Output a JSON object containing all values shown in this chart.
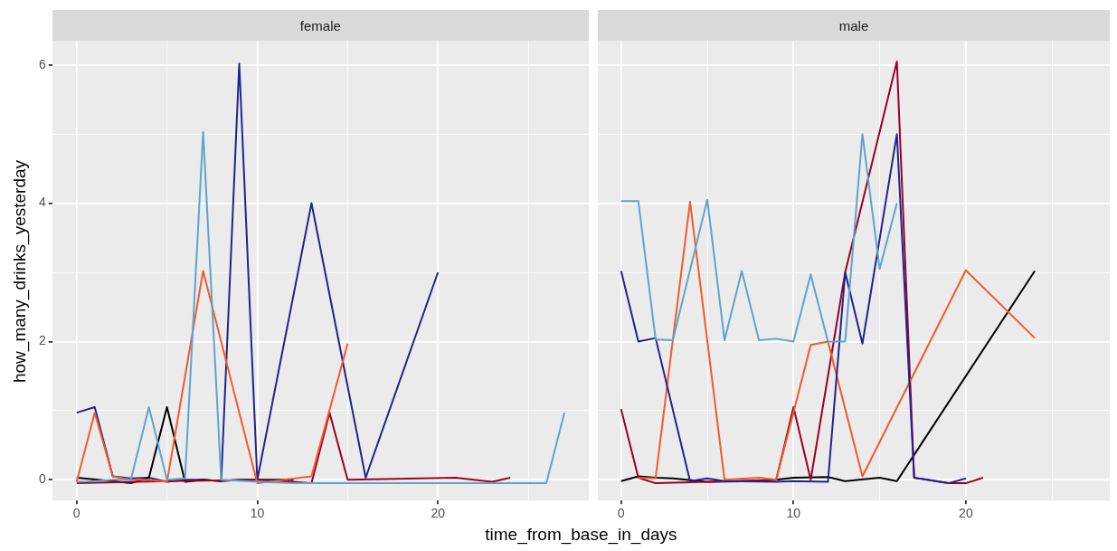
{
  "chart_data": [
    {
      "type": "line",
      "title": "female",
      "ylabel": "how_many_drinks_yesterday",
      "xlabel": "time_from_base_in_days",
      "xlim": [
        -1.35,
        28.35
      ],
      "xticks": [
        0,
        {
          "value": 5,
          "label": null
        },
        10,
        {
          "value": 15,
          "label": null
        },
        20,
        {
          "value": 25,
          "label": null
        }
      ],
      "ylim": [
        -0.3,
        6.35
      ],
      "yticks": [
        0,
        {
          "value": 1,
          "label": null
        },
        2,
        {
          "value": 3,
          "label": null
        },
        4,
        {
          "value": 5,
          "label": null
        },
        6
      ],
      "grid": true,
      "legend": false,
      "series": [
        {
          "color": "#5fa3cd",
          "x": [
            0,
            1,
            2,
            3,
            4,
            5,
            6,
            7,
            8,
            10,
            12,
            15,
            20,
            26,
            27
          ],
          "values": [
            -0.03,
            -0.02,
            0.0,
            0.0,
            1.05,
            0.0,
            0.02,
            5.03,
            0.0,
            -0.03,
            -0.05,
            -0.05,
            -0.05,
            -0.05,
            0.97
          ]
        },
        {
          "color": "#f15a2e",
          "x": [
            0,
            1,
            2,
            3,
            4,
            5,
            7,
            10,
            13,
            15
          ],
          "values": [
            -0.03,
            0.97,
            0.05,
            0.0,
            0.0,
            -0.03,
            3.02,
            -0.05,
            0.05,
            1.97
          ]
        },
        {
          "color": "#9a0024",
          "x": [
            0,
            5,
            10,
            12,
            13,
            14,
            15,
            21,
            23,
            24
          ],
          "values": [
            -0.05,
            -0.02,
            0.0,
            -0.03,
            -0.05,
            0.97,
            0.0,
            0.03,
            -0.03,
            0.03
          ]
        },
        {
          "color": "#000000",
          "x": [
            0,
            2,
            3,
            4,
            5,
            6,
            7,
            8,
            9,
            10,
            12
          ],
          "values": [
            0.03,
            -0.02,
            -0.05,
            0.03,
            1.05,
            -0.03,
            0.0,
            -0.02,
            0.0,
            0.0,
            0.0
          ]
        },
        {
          "color": "#23238a",
          "x": [
            0,
            1,
            2,
            3,
            4,
            5,
            6,
            7,
            8,
            9,
            10,
            13,
            16,
            20
          ],
          "values": [
            0.97,
            1.05,
            0.05,
            0.02,
            0.03,
            -0.03,
            0.0,
            0.0,
            -0.02,
            6.02,
            0.0,
            4.0,
            0.03,
            3.0
          ]
        }
      ]
    },
    {
      "type": "line",
      "title": "male",
      "xlim": [
        -1.35,
        28.35
      ],
      "xticks": [
        0,
        {
          "value": 5,
          "label": null
        },
        10,
        {
          "value": 15,
          "label": null
        },
        20,
        {
          "value": 25,
          "label": null
        }
      ],
      "ylim": [
        -0.3,
        6.35
      ],
      "yticks": [
        0,
        {
          "value": 1,
          "label": null
        },
        2,
        {
          "value": 3,
          "label": null
        },
        4,
        {
          "value": 5,
          "label": null
        },
        6
      ],
      "grid": true,
      "legend": false,
      "tick_labels": "x",
      "series": [
        {
          "color": "#5fa3cd",
          "x": [
            0,
            1,
            2,
            3,
            5,
            6,
            7,
            8,
            9,
            10,
            11,
            12,
            13,
            14,
            15,
            16
          ],
          "values": [
            4.03,
            4.03,
            2.03,
            2.02,
            4.05,
            2.02,
            3.02,
            2.02,
            2.04,
            2.0,
            2.97,
            2.0,
            2.0,
            5.0,
            3.05,
            4.0
          ]
        },
        {
          "color": "#23238a",
          "x": [
            0,
            1,
            2,
            4,
            5,
            6,
            9,
            10,
            12,
            13,
            14,
            16,
            17,
            19,
            20
          ],
          "values": [
            3.02,
            2.0,
            2.05,
            -0.02,
            0.02,
            -0.02,
            -0.03,
            -0.02,
            -0.03,
            3.0,
            1.97,
            5.0,
            0.03,
            -0.05,
            0.02
          ]
        },
        {
          "color": "#f15a2e",
          "x": [
            1,
            2,
            4,
            6,
            8,
            9,
            11,
            12,
            14,
            20,
            24
          ],
          "values": [
            0.03,
            0.02,
            4.02,
            0.0,
            0.03,
            0.0,
            1.95,
            2.0,
            0.05,
            3.03,
            2.05
          ]
        },
        {
          "color": "#9a0024",
          "x": [
            0,
            1,
            2,
            5,
            9,
            10,
            11,
            13,
            16,
            17,
            19,
            20,
            21
          ],
          "values": [
            1.02,
            0.03,
            -0.05,
            -0.03,
            0.0,
            1.05,
            0.0,
            3.0,
            6.05,
            0.03,
            -0.05,
            -0.05,
            0.03
          ]
        },
        {
          "color": "#000000",
          "x": [
            0,
            1,
            2,
            3,
            5,
            8,
            9,
            10,
            12,
            13,
            15,
            16,
            24
          ],
          "values": [
            -0.02,
            0.05,
            0.03,
            0.02,
            -0.03,
            -0.02,
            0.0,
            0.03,
            0.04,
            -0.02,
            0.03,
            -0.02,
            3.02
          ]
        }
      ]
    }
  ]
}
